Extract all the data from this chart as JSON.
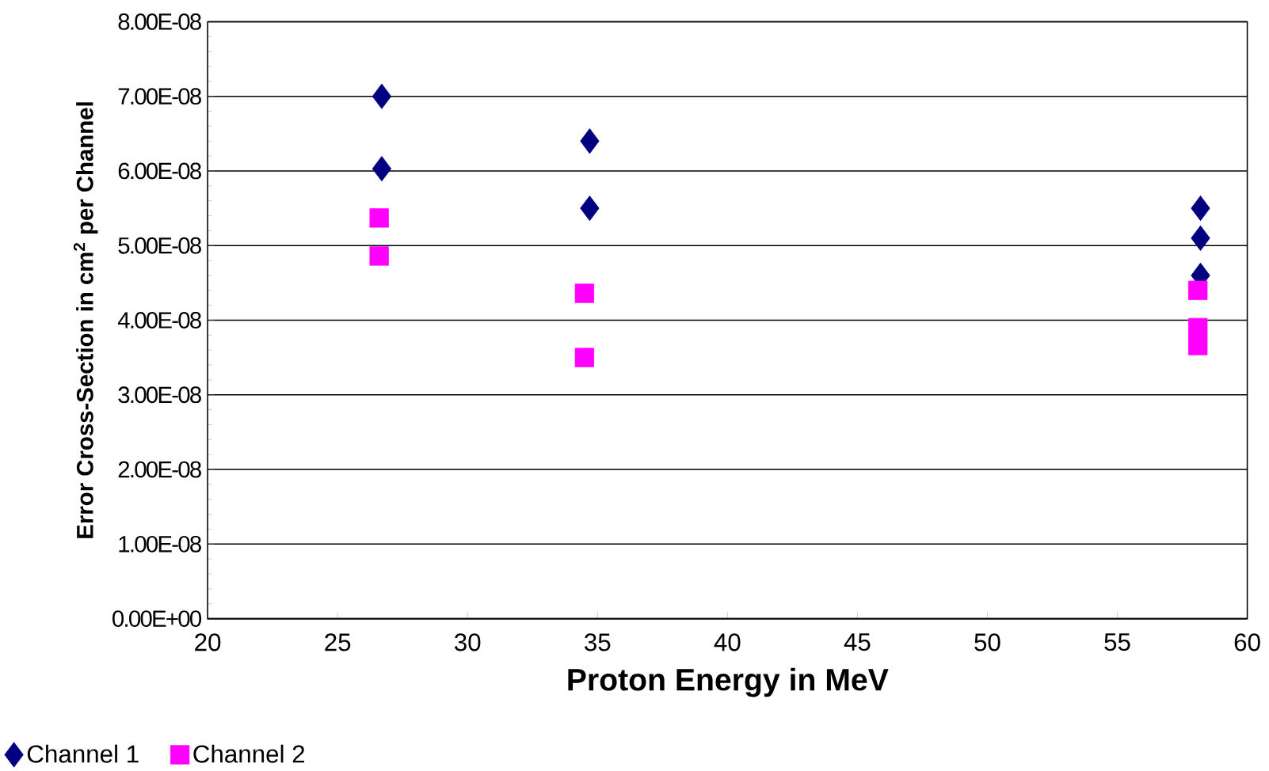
{
  "chart_data": {
    "type": "scatter",
    "xlabel": "Proton Energy in MeV",
    "ylabel": "Error Cross-Section in cm$^{2}$ per Channel",
    "series": [
      {
        "name": "Channel 1",
        "color": "#000080",
        "marker": "diamond",
        "x": [
          26.7,
          26.7,
          34.7,
          34.7,
          58.2,
          58.2,
          58.2
        ],
        "values": [
          7e-08,
          6.03e-08,
          6.4e-08,
          5.5e-08,
          5.5e-08,
          5.1e-08,
          4.6e-08
        ]
      },
      {
        "name": "Channel 2",
        "color": "#ff00ff",
        "marker": "square",
        "x": [
          26.6,
          26.6,
          34.5,
          34.5,
          58.1,
          58.1,
          58.1
        ],
        "values": [
          5.37e-08,
          4.86e-08,
          4.36e-08,
          3.5e-08,
          4.4e-08,
          3.9e-08,
          3.66e-08
        ]
      }
    ],
    "xlim": [
      20,
      60
    ],
    "xticks": [
      20,
      25,
      30,
      35,
      40,
      45,
      50,
      55,
      60
    ],
    "ylim": [
      0,
      8e-08
    ],
    "yticks": [
      {
        "value": 0,
        "label": "0.00E+00"
      },
      {
        "value": 1e-08,
        "label": "1.00E-08"
      },
      {
        "value": 2e-08,
        "label": "2.00E-08"
      },
      {
        "value": 3e-08,
        "label": "3.00E-08"
      },
      {
        "value": 4e-08,
        "label": "4.00E-08"
      },
      {
        "value": 5e-08,
        "label": "5.00E-08"
      },
      {
        "value": 6e-08,
        "label": "6.00E-08"
      },
      {
        "value": 7e-08,
        "label": "7.00E-08"
      },
      {
        "value": 8e-08,
        "label": "8.00E-08"
      }
    ],
    "grid": "y",
    "legend": "bottom left"
  }
}
